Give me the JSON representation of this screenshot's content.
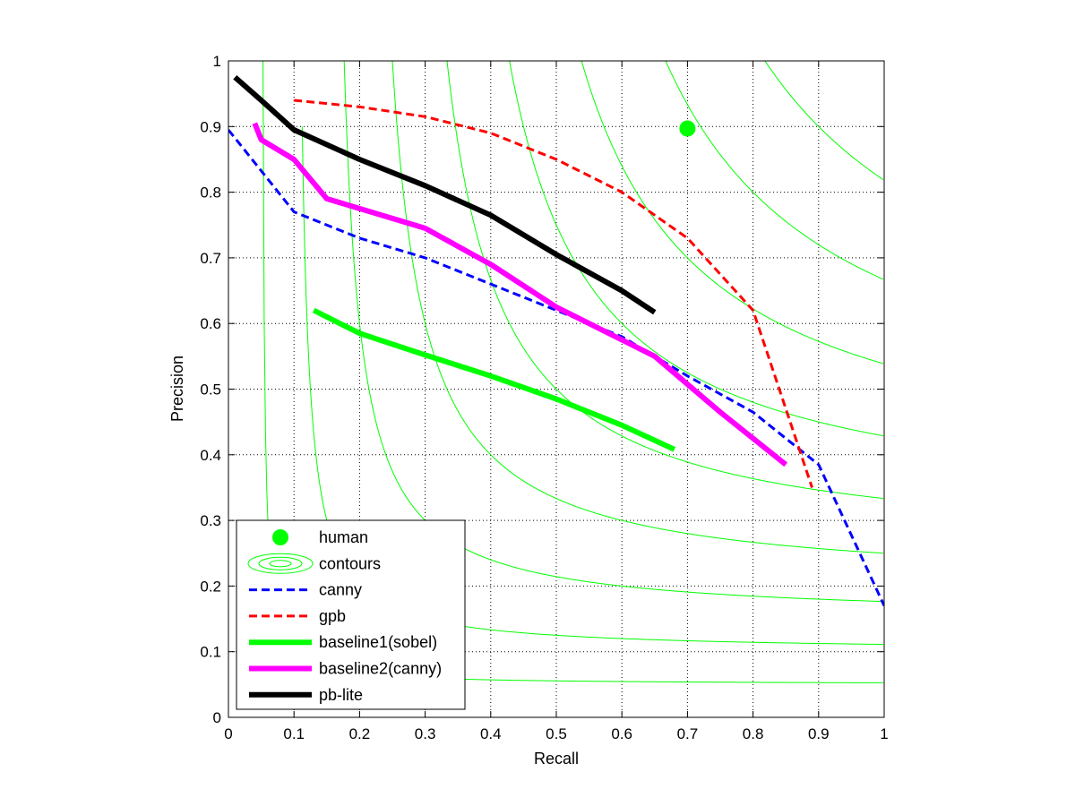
{
  "chart_data": {
    "type": "line",
    "title": "",
    "xlabel": "Recall",
    "ylabel": "Precision",
    "xlim": [
      0,
      1
    ],
    "ylim": [
      0,
      1
    ],
    "grid": true,
    "grid_style": "dotted",
    "legend_placement": "bottom-left",
    "x_ticks": [
      "0",
      "0.1",
      "0.2",
      "0.3",
      "0.4",
      "0.5",
      "0.6",
      "0.7",
      "0.8",
      "0.9",
      "1"
    ],
    "y_ticks": [
      "0",
      "0.1",
      "0.2",
      "0.3",
      "0.4",
      "0.5",
      "0.6",
      "0.7",
      "0.8",
      "0.9",
      "1"
    ],
    "contours": {
      "name": "contours",
      "kind": "iso-F-measure",
      "color": "#00ff00",
      "levels": [
        0.1,
        0.2,
        0.3,
        0.4,
        0.5,
        0.6,
        0.7,
        0.8,
        0.9
      ]
    },
    "points": [
      {
        "name": "human",
        "x": 0.7,
        "y": 0.897,
        "color": "#00ff00"
      }
    ],
    "series": [
      {
        "name": "canny",
        "color": "#0000ff",
        "style": "dashed",
        "x": [
          0.0,
          0.1,
          0.2,
          0.3,
          0.4,
          0.5,
          0.6,
          0.7,
          0.8,
          0.9,
          1.0
        ],
        "y": [
          0.895,
          0.77,
          0.73,
          0.7,
          0.66,
          0.62,
          0.58,
          0.52,
          0.465,
          0.385,
          0.17
        ]
      },
      {
        "name": "gpb",
        "color": "#ff0000",
        "style": "dashed",
        "x": [
          0.1,
          0.2,
          0.3,
          0.4,
          0.5,
          0.6,
          0.7,
          0.8,
          0.89
        ],
        "y": [
          0.94,
          0.93,
          0.915,
          0.89,
          0.85,
          0.8,
          0.73,
          0.62,
          0.35
        ]
      },
      {
        "name": "baseline1(sobel)",
        "color": "#00ff00",
        "style": "solid",
        "x": [
          0.13,
          0.2,
          0.3,
          0.4,
          0.5,
          0.6,
          0.68
        ],
        "y": [
          0.62,
          0.585,
          0.552,
          0.52,
          0.485,
          0.445,
          0.408
        ]
      },
      {
        "name": "baseline2(canny)",
        "color": "#ff00ff",
        "style": "solid",
        "x": [
          0.04,
          0.05,
          0.1,
          0.15,
          0.2,
          0.3,
          0.4,
          0.5,
          0.6,
          0.65,
          0.75,
          0.85
        ],
        "y": [
          0.905,
          0.88,
          0.85,
          0.79,
          0.775,
          0.745,
          0.69,
          0.625,
          0.575,
          0.55,
          0.465,
          0.385
        ]
      },
      {
        "name": "pb-lite",
        "color": "#000000",
        "style": "solid",
        "x": [
          0.01,
          0.05,
          0.1,
          0.2,
          0.3,
          0.4,
          0.5,
          0.6,
          0.65
        ],
        "y": [
          0.975,
          0.94,
          0.895,
          0.85,
          0.81,
          0.765,
          0.705,
          0.65,
          0.617
        ]
      }
    ],
    "legend": [
      "human",
      "contours",
      "canny",
      "gpb",
      "baseline1(sobel)",
      "baseline2(canny)",
      "pb-lite"
    ]
  }
}
